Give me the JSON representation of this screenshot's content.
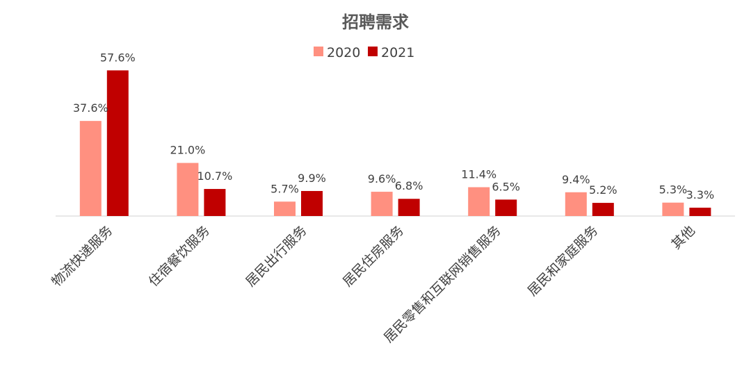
{
  "chart_data": {
    "type": "bar",
    "title": "招聘需求",
    "categories": [
      "物流快递服务",
      "住宿餐饮服务",
      "居民出行服务",
      "居民住房服务",
      "居民零售和互联网销售服务",
      "居民和家庭服务",
      "其他"
    ],
    "series": [
      {
        "name": "2020",
        "color": "#FF9080",
        "values": [
          37.6,
          21.0,
          5.7,
          9.6,
          11.4,
          9.4,
          5.3
        ],
        "labels": [
          "37.6%",
          "21.0%",
          "5.7%",
          "9.6%",
          "11.4%",
          "9.4%",
          "5.3%"
        ]
      },
      {
        "name": "2021",
        "color": "#C00000",
        "values": [
          57.6,
          10.7,
          9.9,
          6.8,
          6.5,
          5.2,
          3.3
        ],
        "labels": [
          "57.6%",
          "10.7%",
          "9.9%",
          "6.8%",
          "6.5%",
          "5.2%",
          "3.3%"
        ]
      }
    ],
    "unit": "%",
    "ylim": [
      0,
      60
    ],
    "grid": false,
    "legend_position": "top-center",
    "xlabel": "",
    "ylabel": ""
  }
}
